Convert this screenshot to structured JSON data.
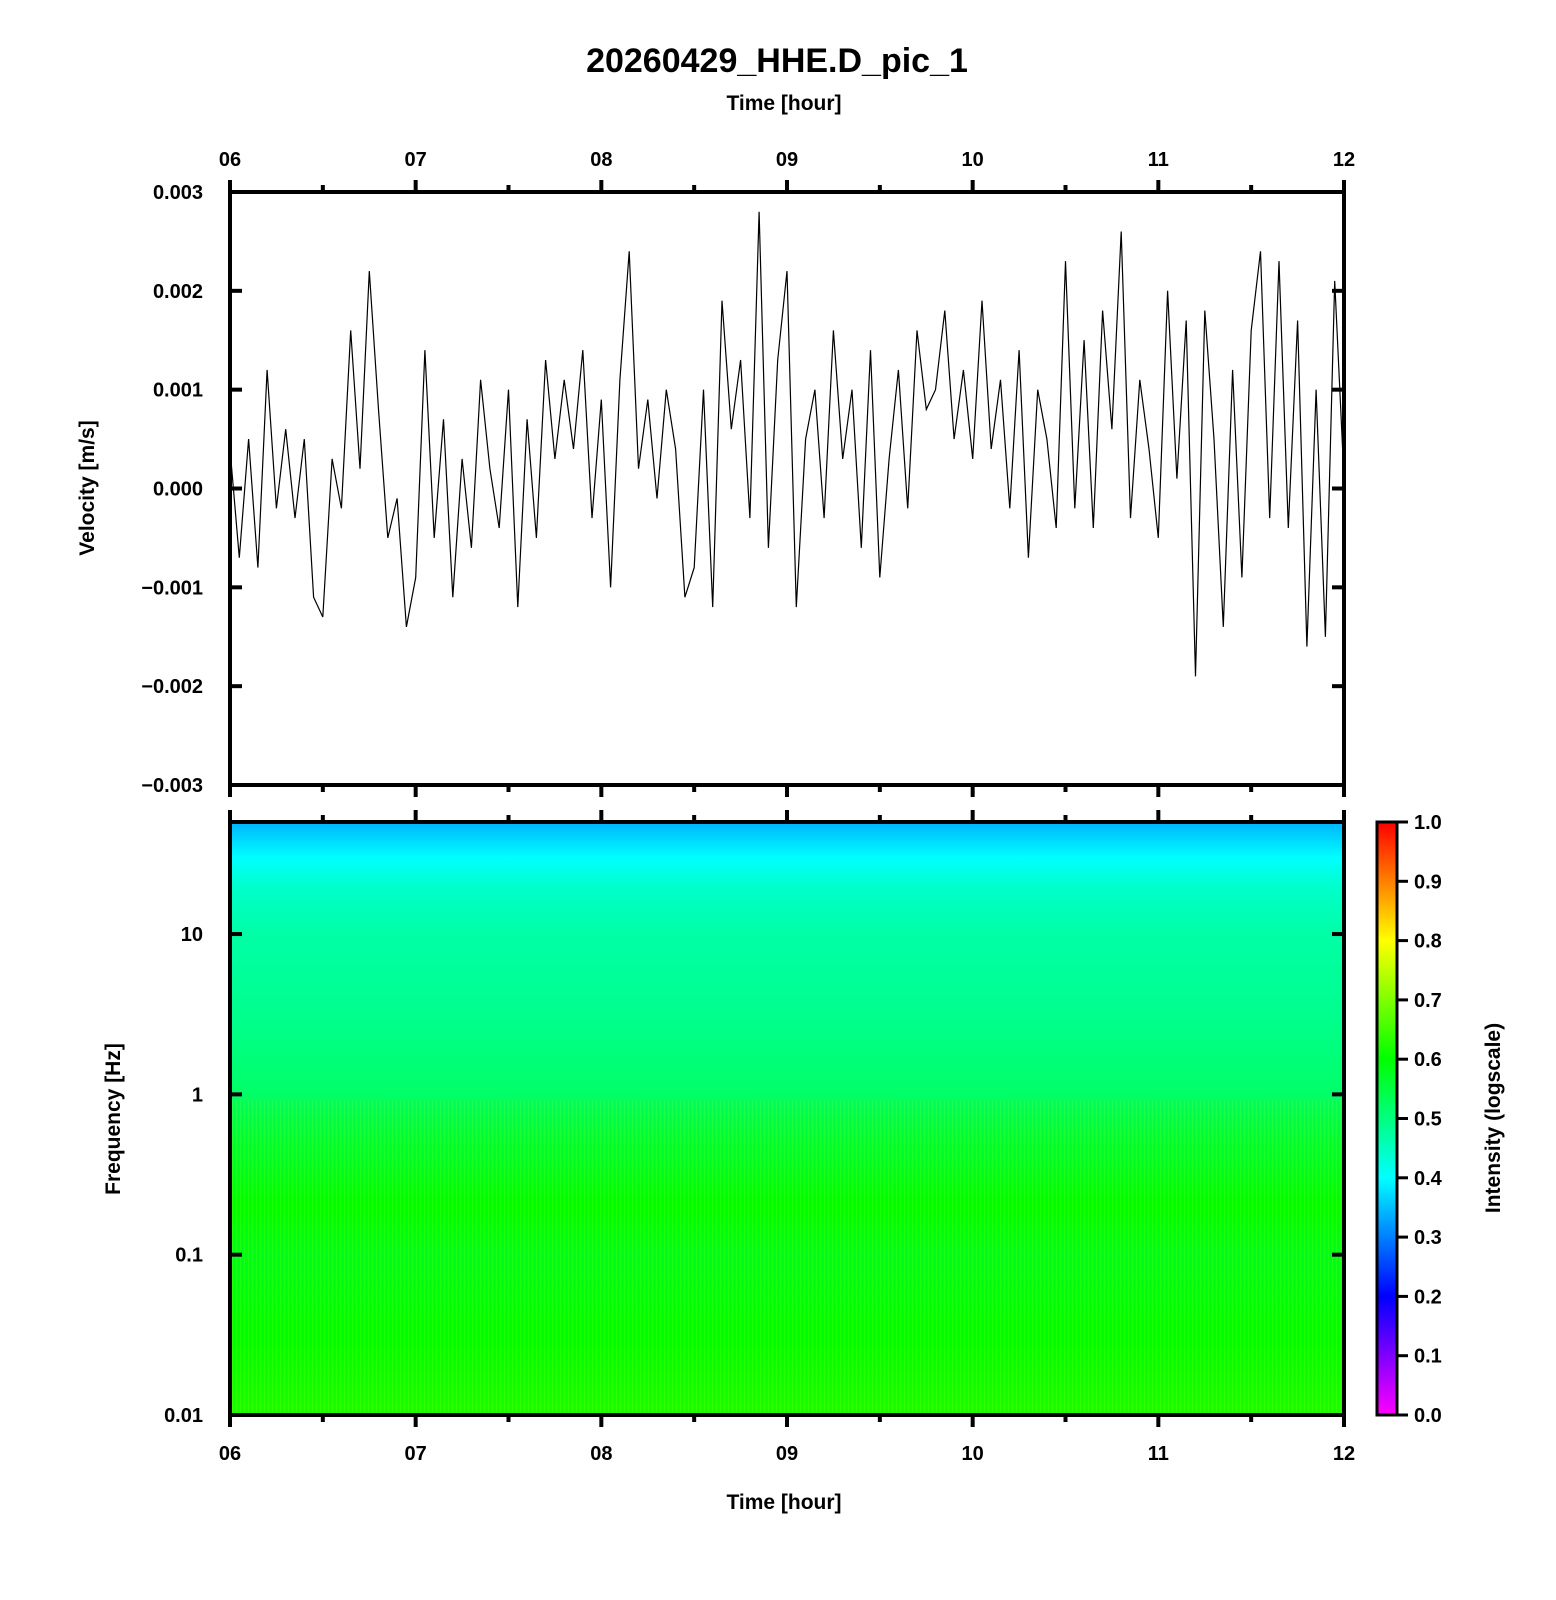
{
  "figure": {
    "title": "20260429_HHE.D_pic_1"
  },
  "chart_data": [
    {
      "type": "line",
      "title": "20260429_HHE.D_pic_1",
      "xlabel": "Time [hour]",
      "ylabel": "Velocity [m/s]",
      "xlim": [
        6,
        12
      ],
      "ylim": [
        -0.003,
        0.003
      ],
      "x_tick_labels": [
        "06",
        "07",
        "08",
        "09",
        "10",
        "11",
        "12"
      ],
      "y_tick_labels": [
        "-0.003",
        "-0.002",
        "-0.001",
        "0.000",
        "0.001",
        "0.002",
        "0.003"
      ],
      "grid": false,
      "series": [
        {
          "x": [
            6.0,
            6.05,
            6.1,
            6.15,
            6.2,
            6.25,
            6.3,
            6.35,
            6.4,
            6.45,
            6.5,
            6.55,
            6.6,
            6.65,
            6.7,
            6.75,
            6.8,
            6.85,
            6.9,
            6.95,
            7.0,
            7.05,
            7.1,
            7.15,
            7.2,
            7.25,
            7.3,
            7.35,
            7.4,
            7.45,
            7.5,
            7.55,
            7.6,
            7.65,
            7.7,
            7.75,
            7.8,
            7.85,
            7.9,
            7.95,
            8.0,
            8.05,
            8.1,
            8.15,
            8.2,
            8.25,
            8.3,
            8.35,
            8.4,
            8.45,
            8.5,
            8.55,
            8.6,
            8.65,
            8.7,
            8.75,
            8.8,
            8.85,
            8.9,
            8.95,
            9.0,
            9.05,
            9.1,
            9.15,
            9.2,
            9.25,
            9.3,
            9.35,
            9.4,
            9.45,
            9.5,
            9.55,
            9.6,
            9.65,
            9.7,
            9.75,
            9.8,
            9.85,
            9.9,
            9.95,
            10.0,
            10.05,
            10.1,
            10.15,
            10.2,
            10.25,
            10.3,
            10.35,
            10.4,
            10.45,
            10.5,
            10.55,
            10.6,
            10.65,
            10.7,
            10.75,
            10.8,
            10.85,
            10.9,
            10.95,
            11.0,
            11.05,
            11.1,
            11.15,
            11.2,
            11.25,
            11.3,
            11.35,
            11.4,
            11.45,
            11.5,
            11.55,
            11.6,
            11.65,
            11.7,
            11.75,
            11.8,
            11.85,
            11.9,
            11.95,
            12.0
          ],
          "y": [
            0.0004,
            -0.0007,
            0.0005,
            -0.0008,
            0.0012,
            -0.0002,
            0.0006,
            -0.0003,
            0.0005,
            -0.0011,
            -0.0013,
            0.0003,
            -0.0002,
            0.0016,
            0.0002,
            0.0022,
            0.0008,
            -0.0005,
            -0.0001,
            -0.0014,
            -0.0009,
            0.0014,
            -0.0005,
            0.0007,
            -0.0011,
            0.0003,
            -0.0006,
            0.0011,
            0.0002,
            -0.0004,
            0.001,
            -0.0012,
            0.0007,
            -0.0005,
            0.0013,
            0.0003,
            0.0011,
            0.0004,
            0.0014,
            -0.0003,
            0.0009,
            -0.001,
            0.0011,
            0.0024,
            0.0002,
            0.0009,
            -0.0001,
            0.001,
            0.0004,
            -0.0011,
            -0.0008,
            0.001,
            -0.0012,
            0.0019,
            0.0006,
            0.0013,
            -0.0003,
            0.0028,
            -0.0006,
            0.0013,
            0.0022,
            -0.0012,
            0.0005,
            0.001,
            -0.0003,
            0.0016,
            0.0003,
            0.001,
            -0.0006,
            0.0014,
            -0.0009,
            0.0003,
            0.0012,
            -0.0002,
            0.0016,
            0.0008,
            0.001,
            0.0018,
            0.0005,
            0.0012,
            0.0003,
            0.0019,
            0.0004,
            0.0011,
            -0.0002,
            0.0014,
            -0.0007,
            0.001,
            0.0005,
            -0.0004,
            0.0023,
            -0.0002,
            0.0015,
            -0.0004,
            0.0018,
            0.0006,
            0.0026,
            -0.0003,
            0.0011,
            0.0004,
            -0.0005,
            0.002,
            0.0001,
            0.0017,
            -0.0019,
            0.0018,
            0.0005,
            -0.0014,
            0.0012,
            -0.0009,
            0.0016,
            0.0024,
            -0.0003,
            0.0023,
            -0.0004,
            0.0017,
            -0.0016,
            0.001,
            -0.0015,
            0.0021,
            0.0001
          ]
        }
      ]
    },
    {
      "type": "heatmap",
      "xlabel": "Time [hour]",
      "ylabel": "Frequency [Hz]",
      "xlim": [
        6,
        12
      ],
      "ylim": [
        0.01,
        50
      ],
      "y_scale": "log",
      "x_tick_labels": [
        "06",
        "07",
        "08",
        "09",
        "10",
        "11",
        "12"
      ],
      "y_tick_labels": [
        "0.01",
        "0.1",
        "1",
        "10"
      ],
      "colorbar": {
        "label": "Intensity (logscale)",
        "range": [
          0.0,
          1.0
        ],
        "tick_labels": [
          "0.0",
          "0.1",
          "0.2",
          "0.3",
          "0.4",
          "0.5",
          "0.6",
          "0.7",
          "0.8",
          "0.9",
          "1.0"
        ],
        "colors": [
          "#ff00ff",
          "#0000ff",
          "#00ffff",
          "#00ff00",
          "#ffff00",
          "#ff0000"
        ]
      },
      "frequency_profile": {
        "frequency_hz": [
          50,
          30,
          20,
          10,
          3,
          1,
          0.5,
          0.3,
          0.2,
          0.1,
          0.03,
          0.01
        ],
        "intensity": [
          0.34,
          0.4,
          0.44,
          0.47,
          0.49,
          0.52,
          0.56,
          0.58,
          0.6,
          0.58,
          0.6,
          0.62
        ]
      }
    }
  ]
}
